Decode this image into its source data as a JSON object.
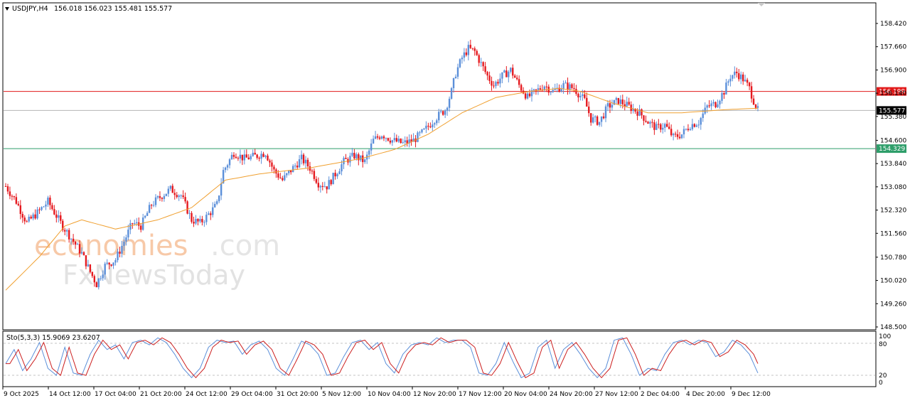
{
  "header": {
    "symbol": "USDJPY,H4",
    "ohlc": "156.018 156.023 155.481 155.577"
  },
  "indicator": {
    "label": "Sto(5,3,3) 15.9069 23.6207",
    "levels": [
      "100",
      "80",
      "20",
      "0"
    ]
  },
  "watermark": {
    "brand_a": "economies",
    "brand_b": ".com",
    "brand_c": "FxNewsToday"
  },
  "colors": {
    "up": "#5b8fd9",
    "down": "#e5191f",
    "ma": "#f0a030",
    "resistance": "#e11919",
    "support": "#2e9e6a",
    "current": "#000000",
    "stoch_main": "#5b8fd9",
    "stoch_signal": "#cc1f1f"
  },
  "chart_data": {
    "type": "candlestick",
    "symbol": "USDJPY",
    "timeframe": "H4",
    "y_ticks": [
      "158.420",
      "157.660",
      "156.900",
      "156.140",
      "155.380",
      "154.600",
      "153.840",
      "153.080",
      "152.320",
      "151.560",
      "150.780",
      "150.020",
      "149.260",
      "148.500"
    ],
    "ylim": [
      148.5,
      158.42
    ],
    "x_ticks": [
      "9 Oct 2025",
      "14 Oct 12:00",
      "17 Oct 04:00",
      "21 Oct 20:00",
      "24 Oct 12:00",
      "29 Oct 04:00",
      "31 Oct 20:00",
      "5 Nov 12:00",
      "10 Nov 04:00",
      "12 Nov 20:00",
      "17 Nov 12:00",
      "20 Nov 04:00",
      "24 Nov 20:00",
      "27 Nov 12:00",
      "2 Dec 04:00",
      "4 Dec 20:00",
      "9 Dec 12:00"
    ],
    "price_levels": [
      {
        "name": "resistance",
        "value": 156.199,
        "label": "156.199"
      },
      {
        "name": "current",
        "value": 155.577,
        "label": "155.577"
      },
      {
        "name": "support",
        "value": 154.329,
        "label": "154.329"
      }
    ],
    "close_path": [
      [
        0,
        153.1
      ],
      [
        5,
        152.6
      ],
      [
        10,
        151.9
      ],
      [
        16,
        152.3
      ],
      [
        20,
        152.6
      ],
      [
        26,
        151.9
      ],
      [
        31,
        151.4
      ],
      [
        36,
        150.9
      ],
      [
        40,
        150.3
      ],
      [
        43,
        149.9
      ],
      [
        47,
        150.5
      ],
      [
        52,
        150.7
      ],
      [
        56,
        151.3
      ],
      [
        60,
        151.9
      ],
      [
        64,
        151.8
      ],
      [
        69,
        152.5
      ],
      [
        74,
        152.8
      ],
      [
        78,
        153.0
      ],
      [
        83,
        152.8
      ],
      [
        88,
        152.0
      ],
      [
        92,
        151.9
      ],
      [
        95,
        152.1
      ],
      [
        100,
        152.5
      ],
      [
        103,
        153.6
      ],
      [
        108,
        154.2
      ],
      [
        113,
        154.0
      ],
      [
        119,
        154.1
      ],
      [
        123,
        154.2
      ],
      [
        127,
        153.6
      ],
      [
        131,
        153.3
      ],
      [
        136,
        153.7
      ],
      [
        140,
        154.0
      ],
      [
        144,
        153.7
      ],
      [
        148,
        153.2
      ],
      [
        152,
        153.1
      ],
      [
        156,
        153.5
      ],
      [
        160,
        153.9
      ],
      [
        165,
        154.1
      ],
      [
        170,
        153.9
      ],
      [
        174,
        154.6
      ],
      [
        178,
        154.8
      ],
      [
        183,
        154.6
      ],
      [
        188,
        154.5
      ],
      [
        193,
        154.6
      ],
      [
        198,
        154.9
      ],
      [
        203,
        155.3
      ],
      [
        208,
        155.6
      ],
      [
        211,
        156.2
      ],
      [
        213,
        156.8
      ],
      [
        216,
        157.3
      ],
      [
        219,
        157.6
      ],
      [
        222,
        157.5
      ],
      [
        225,
        157.1
      ],
      [
        228,
        156.7
      ],
      [
        231,
        156.4
      ],
      [
        235,
        156.7
      ],
      [
        239,
        156.9
      ],
      [
        243,
        156.4
      ],
      [
        247,
        156.0
      ],
      [
        251,
        156.2
      ],
      [
        255,
        156.4
      ],
      [
        259,
        156.2
      ],
      [
        264,
        156.4
      ],
      [
        269,
        156.3
      ],
      [
        274,
        155.9
      ],
      [
        277,
        155.3
      ],
      [
        281,
        155.2
      ],
      [
        285,
        155.7
      ],
      [
        290,
        155.9
      ],
      [
        295,
        155.7
      ],
      [
        300,
        155.5
      ],
      [
        304,
        155.2
      ],
      [
        308,
        155.0
      ],
      [
        312,
        155.1
      ],
      [
        316,
        154.7
      ],
      [
        320,
        154.8
      ],
      [
        324,
        155.1
      ],
      [
        328,
        155.2
      ],
      [
        332,
        155.7
      ],
      [
        336,
        155.8
      ],
      [
        340,
        156.2
      ],
      [
        343,
        156.7
      ],
      [
        346,
        156.8
      ],
      [
        349,
        156.6
      ],
      [
        352,
        156.3
      ],
      [
        354,
        155.9
      ],
      [
        356,
        155.58
      ]
    ],
    "ma_path": [
      [
        0,
        149.7
      ],
      [
        16,
        150.8
      ],
      [
        28,
        151.8
      ],
      [
        36,
        152.0
      ],
      [
        52,
        151.7
      ],
      [
        72,
        152.0
      ],
      [
        88,
        152.4
      ],
      [
        104,
        153.3
      ],
      [
        120,
        153.5
      ],
      [
        144,
        153.7
      ],
      [
        168,
        154.0
      ],
      [
        184,
        154.3
      ],
      [
        200,
        154.8
      ],
      [
        216,
        155.5
      ],
      [
        232,
        156.0
      ],
      [
        248,
        156.2
      ],
      [
        262,
        156.3
      ],
      [
        272,
        156.2
      ],
      [
        288,
        155.8
      ],
      [
        304,
        155.5
      ],
      [
        320,
        155.5
      ],
      [
        340,
        155.6
      ],
      [
        356,
        155.65
      ]
    ],
    "stoch_path": [
      [
        0,
        40
      ],
      [
        4,
        70
      ],
      [
        8,
        25
      ],
      [
        12,
        50
      ],
      [
        16,
        85
      ],
      [
        20,
        30
      ],
      [
        24,
        15
      ],
      [
        28,
        75
      ],
      [
        32,
        20
      ],
      [
        36,
        15
      ],
      [
        40,
        60
      ],
      [
        44,
        90
      ],
      [
        48,
        70
      ],
      [
        52,
        80
      ],
      [
        56,
        50
      ],
      [
        60,
        85
      ],
      [
        64,
        90
      ],
      [
        68,
        80
      ],
      [
        72,
        95
      ],
      [
        76,
        85
      ],
      [
        80,
        60
      ],
      [
        84,
        30
      ],
      [
        88,
        10
      ],
      [
        92,
        30
      ],
      [
        96,
        75
      ],
      [
        100,
        90
      ],
      [
        104,
        85
      ],
      [
        108,
        88
      ],
      [
        112,
        60
      ],
      [
        116,
        80
      ],
      [
        120,
        88
      ],
      [
        124,
        70
      ],
      [
        128,
        30
      ],
      [
        132,
        15
      ],
      [
        136,
        50
      ],
      [
        140,
        88
      ],
      [
        144,
        80
      ],
      [
        148,
        60
      ],
      [
        152,
        15
      ],
      [
        156,
        20
      ],
      [
        160,
        55
      ],
      [
        164,
        85
      ],
      [
        168,
        90
      ],
      [
        172,
        70
      ],
      [
        176,
        85
      ],
      [
        180,
        40
      ],
      [
        184,
        20
      ],
      [
        188,
        60
      ],
      [
        192,
        80
      ],
      [
        196,
        85
      ],
      [
        200,
        80
      ],
      [
        204,
        95
      ],
      [
        208,
        85
      ],
      [
        212,
        90
      ],
      [
        216,
        90
      ],
      [
        220,
        75
      ],
      [
        224,
        20
      ],
      [
        228,
        15
      ],
      [
        232,
        40
      ],
      [
        236,
        85
      ],
      [
        240,
        45
      ],
      [
        244,
        10
      ],
      [
        248,
        20
      ],
      [
        252,
        75
      ],
      [
        256,
        90
      ],
      [
        260,
        30
      ],
      [
        264,
        70
      ],
      [
        268,
        85
      ],
      [
        272,
        60
      ],
      [
        276,
        30
      ],
      [
        280,
        10
      ],
      [
        284,
        30
      ],
      [
        288,
        90
      ],
      [
        292,
        95
      ],
      [
        296,
        60
      ],
      [
        300,
        15
      ],
      [
        304,
        30
      ],
      [
        308,
        25
      ],
      [
        312,
        60
      ],
      [
        316,
        85
      ],
      [
        320,
        90
      ],
      [
        324,
        80
      ],
      [
        328,
        90
      ],
      [
        332,
        85
      ],
      [
        336,
        55
      ],
      [
        340,
        65
      ],
      [
        344,
        90
      ],
      [
        348,
        80
      ],
      [
        352,
        60
      ],
      [
        356,
        20
      ]
    ]
  }
}
